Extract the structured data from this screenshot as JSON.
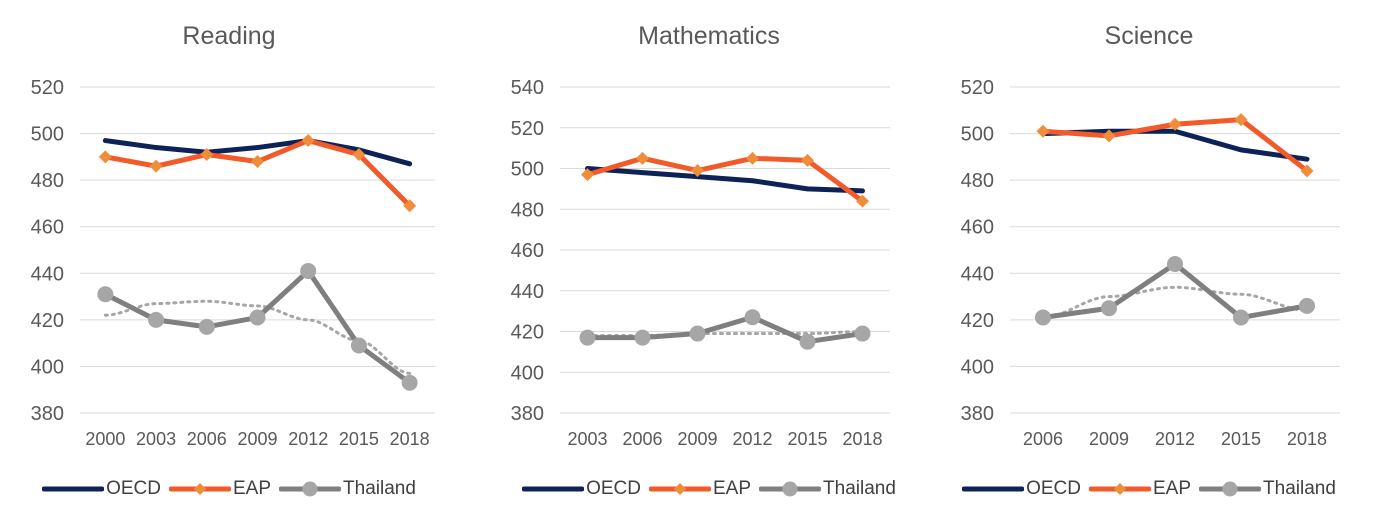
{
  "chart_data": [
    {
      "type": "line",
      "title": "Reading",
      "x": [
        "2000",
        "2003",
        "2006",
        "2009",
        "2012",
        "2015",
        "2018"
      ],
      "ylim": [
        380,
        520
      ],
      "yticks": [
        380,
        400,
        420,
        440,
        460,
        480,
        500,
        520
      ],
      "grid": true,
      "legend_position": "bottom",
      "series": [
        {
          "name": "OECD",
          "values": [
            497,
            494,
            492,
            494,
            497,
            493,
            487
          ]
        },
        {
          "name": "EAP",
          "values": [
            490,
            486,
            491,
            488,
            497,
            491,
            469
          ]
        },
        {
          "name": "Thailand",
          "values": [
            431,
            420,
            417,
            421,
            441,
            409,
            393
          ]
        }
      ],
      "trendline": {
        "series": "Thailand",
        "style": "dotted",
        "values": [
          422,
          427,
          428,
          426,
          420,
          411,
          397
        ]
      }
    },
    {
      "type": "line",
      "title": "Mathematics",
      "x": [
        "2003",
        "2006",
        "2009",
        "2012",
        "2015",
        "2018"
      ],
      "ylim": [
        380,
        540
      ],
      "yticks": [
        380,
        400,
        420,
        440,
        460,
        480,
        500,
        520,
        540
      ],
      "grid": true,
      "legend_position": "bottom",
      "series": [
        {
          "name": "OECD",
          "values": [
            500,
            498,
            496,
            494,
            490,
            489
          ]
        },
        {
          "name": "EAP",
          "values": [
            497,
            505,
            499,
            505,
            504,
            484
          ]
        },
        {
          "name": "Thailand",
          "values": [
            417,
            417,
            419,
            427,
            415,
            419
          ]
        }
      ],
      "trendline": {
        "series": "Thailand",
        "style": "dotted",
        "values": [
          418,
          418,
          419,
          419,
          419,
          420
        ]
      }
    },
    {
      "type": "line",
      "title": "Science",
      "x": [
        "2006",
        "2009",
        "2012",
        "2015",
        "2018"
      ],
      "ylim": [
        380,
        520
      ],
      "yticks": [
        380,
        400,
        420,
        440,
        460,
        480,
        500,
        520
      ],
      "grid": true,
      "legend_position": "bottom",
      "series": [
        {
          "name": "OECD",
          "values": [
            500,
            501,
            501,
            493,
            489
          ]
        },
        {
          "name": "EAP",
          "values": [
            501,
            499,
            504,
            506,
            484
          ]
        },
        {
          "name": "Thailand",
          "values": [
            421,
            425,
            444,
            421,
            426
          ]
        }
      ],
      "trendline": {
        "series": "Thailand",
        "style": "dotted",
        "values": [
          421,
          430,
          434,
          431,
          424
        ]
      }
    }
  ],
  "colors": {
    "OECD": "#0d2257",
    "EAP": "#f25a29",
    "EAP_marker": "#f08d3a",
    "Thailand": "#7f7f7f",
    "Thailand_marker": "#a6a6a6",
    "grid": "#d9d9d9",
    "text": "#595959"
  },
  "legend_icons": {
    "OECD": "line",
    "EAP": "line-diamond-marker",
    "Thailand": "line-circle-marker"
  }
}
